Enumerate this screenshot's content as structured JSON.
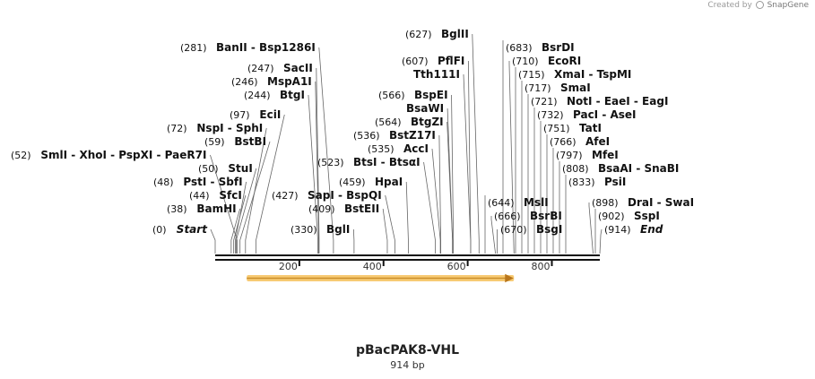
{
  "credit": {
    "prefix": "Created by",
    "brand": "SnapGene"
  },
  "map": {
    "name": "pBacPAK8-VHL",
    "length_label": "914 bp",
    "length": 914
  },
  "ruler": {
    "ticks": [
      200,
      400,
      600,
      800
    ]
  },
  "feature": {
    "start": 75,
    "end": 710,
    "color": "#f6c15a",
    "stroke": "#c98d2b"
  },
  "sites": [
    {
      "pos": "(0)",
      "name": "Start",
      "italic": true,
      "bp": 0
    },
    {
      "pos": "(38)",
      "name": "BamHI",
      "bp": 38
    },
    {
      "pos": "(44)",
      "name": "SfcI",
      "bp": 44
    },
    {
      "pos": "(48)",
      "name": "PstI  -  SbfI",
      "bp": 48
    },
    {
      "pos": "(50)",
      "name": "StuI",
      "bp": 50
    },
    {
      "pos": "(52)",
      "name": "SmlI  -  XhoI  -  PspXI  -  PaeR7I",
      "bp": 52
    },
    {
      "pos": "(59)",
      "name": "BstBI",
      "bp": 59
    },
    {
      "pos": "(72)",
      "name": "NspI  -  SphI",
      "bp": 72
    },
    {
      "pos": "(97)",
      "name": "EciI",
      "bp": 97
    },
    {
      "pos": "(244)",
      "name": "BtgI",
      "bp": 244
    },
    {
      "pos": "(246)",
      "name": "MspA1I",
      "bp": 246
    },
    {
      "pos": "(247)",
      "name": "SacII",
      "bp": 247
    },
    {
      "pos": "(281)",
      "name": "BanII  -  Bsp1286I",
      "bp": 281
    },
    {
      "pos": "(330)",
      "name": "BglI",
      "bp": 330
    },
    {
      "pos": "(409)",
      "name": "BstEII",
      "bp": 409
    },
    {
      "pos": "(427)",
      "name": "SapI  -  BspQI",
      "bp": 427
    },
    {
      "pos": "(459)",
      "name": "HpaI",
      "bp": 459
    },
    {
      "pos": "(523)",
      "name": "BtsI  -  BtsαI",
      "bp": 523
    },
    {
      "pos": "(535)",
      "name": "AccI",
      "bp": 535
    },
    {
      "pos": "(536)",
      "name": "BstZ17I",
      "bp": 536
    },
    {
      "pos": "(564)",
      "name": "BtgZI",
      "bp": 564
    },
    {
      "pos": "",
      "name": "BsaWI",
      "bp": 564
    },
    {
      "pos": "(566)",
      "name": "BspEI",
      "bp": 566
    },
    {
      "pos": "(607)",
      "name": "PflFI",
      "bp": 607
    },
    {
      "pos": "",
      "name": "Tth111I",
      "bp": 607
    },
    {
      "pos": "(627)",
      "name": "BglII",
      "bp": 627
    },
    {
      "pos": "(644)",
      "name": "MslI",
      "bp": 644
    },
    {
      "pos": "(666)",
      "name": "BsrBI",
      "bp": 666
    },
    {
      "pos": "(670)",
      "name": "BsgI",
      "bp": 670
    },
    {
      "pos": "(683)",
      "name": "BsrDI",
      "bp": 683
    },
    {
      "pos": "(710)",
      "name": "EcoRI",
      "bp": 710
    },
    {
      "pos": "(715)",
      "name": "XmaI  -  TspMI",
      "bp": 715
    },
    {
      "pos": "(717)",
      "name": "SmaI",
      "bp": 717
    },
    {
      "pos": "(721)",
      "name": "NotI  -  EaeI  -  EagI",
      "bp": 721
    },
    {
      "pos": "(732)",
      "name": "PacI  -  AseI",
      "bp": 732
    },
    {
      "pos": "(751)",
      "name": "TatI",
      "bp": 751
    },
    {
      "pos": "(766)",
      "name": "AfeI",
      "bp": 766
    },
    {
      "pos": "(797)",
      "name": "MfeI",
      "bp": 797
    },
    {
      "pos": "(808)",
      "name": "BsaAI  -  SnaBI",
      "bp": 808
    },
    {
      "pos": "(833)",
      "name": "PsiI",
      "bp": 833
    },
    {
      "pos": "(898)",
      "name": "DraI  -  SwaI",
      "bp": 898
    },
    {
      "pos": "(902)",
      "name": "SspI",
      "bp": 902
    },
    {
      "pos": "(914)",
      "name": "End",
      "italic": true,
      "bp": 914
    }
  ]
}
